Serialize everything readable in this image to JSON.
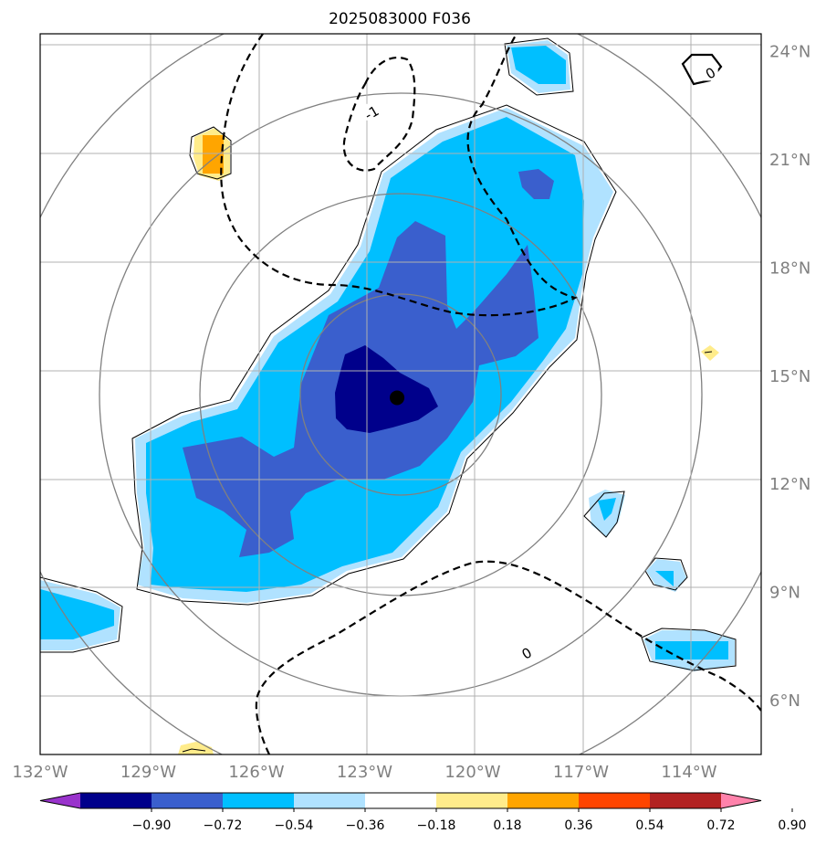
{
  "chart_data": {
    "type": "contour-map",
    "title": "2025083000 F036",
    "x_ticks": [
      "132°W",
      "129°W",
      "126°W",
      "123°W",
      "120°W",
      "117°W",
      "114°W"
    ],
    "y_ticks": [
      "24°N",
      "21°N",
      "18°N",
      "15°N",
      "12°N",
      "9°N",
      "6°N"
    ],
    "lon_range": [
      -132,
      -112
    ],
    "lat_range": [
      4.5,
      24.5
    ],
    "center_marker": {
      "lon": -122.1,
      "lat": 14.4
    },
    "range_rings_deg": [
      3,
      5.8,
      8.6,
      11.4
    ],
    "colorbar": {
      "levels": [
        -0.9,
        -0.72,
        -0.54,
        -0.36,
        -0.18,
        0.18,
        0.36,
        0.54,
        0.72,
        0.9
      ],
      "tick_labels": [
        "−0.90",
        "−0.72",
        "−0.54",
        "−0.36",
        "−0.18",
        "0.18",
        "0.36",
        "0.54",
        "0.72",
        "0.90"
      ],
      "colors": [
        "#9933cc",
        "#00008b",
        "#3a5fcd",
        "#00bfff",
        "#b0e2ff",
        "#ffffff",
        "#ffec8b",
        "#ffa500",
        "#ff4500",
        "#b22222",
        "#ff82ab"
      ]
    },
    "contour_labels": [
      {
        "text": "0",
        "lon": -118.5,
        "lat": 7.3
      },
      {
        "text": "-1",
        "lon": -122.8,
        "lat": 22.3
      },
      {
        "text": "0",
        "lon": -113.4,
        "lat": 23.4
      }
    ]
  }
}
